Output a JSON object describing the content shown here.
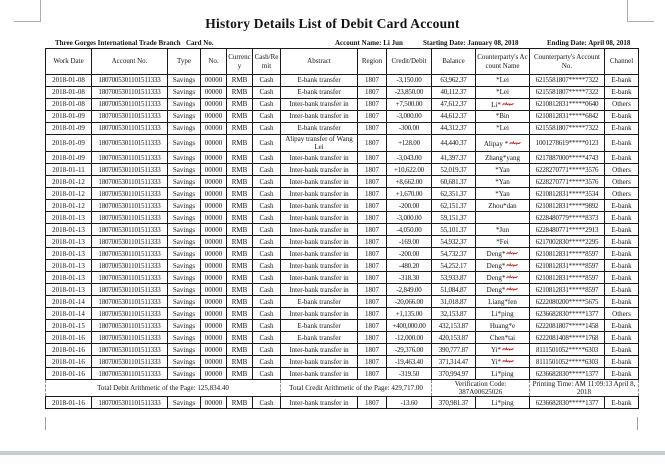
{
  "page": {
    "title": "History Details List of Debit Card Account",
    "info": {
      "branch": "Three Gorges International Trade Branch",
      "card_no_label": "Card No.",
      "account_name": "Account Name: Li Jun",
      "starting_date": "Starting Date: January 08, 2018",
      "ending_date": "Ending Date: April 08, 2018"
    },
    "colors": {
      "annotation_red": "#c42522",
      "table_border": "#1a1a1a"
    }
  },
  "table": {
    "columns": [
      "Work Date",
      "Account No.",
      "Type",
      "No.",
      "Currency",
      "Cash/Remit",
      "Abstract",
      "Region",
      "Credit/Debit",
      "Balance",
      "Counterparty's Account Name",
      "Counterparty's Account No.",
      "Channel"
    ],
    "rows": [
      {
        "work_date": "2018-01-08",
        "account_no": "1807005301101511333",
        "type": "Savings",
        "no": "00000",
        "currency": "RMB",
        "cash_remit": "Cash",
        "abstract": "E-bank transfer",
        "region": "1807",
        "credit_debit": "-3,150.00",
        "balance": "63,962.37",
        "cp_name": "*Lei",
        "cp_name_marked": false,
        "cp_account": "6215581807*****7322",
        "channel": "E-bank"
      },
      {
        "work_date": "2018-01-08",
        "account_no": "1807005301101511333",
        "type": "Savings",
        "no": "00000",
        "currency": "RMB",
        "cash_remit": "Cash",
        "abstract": "E-bank transfer",
        "region": "1807",
        "credit_debit": "-23,850.00",
        "balance": "40,112.37",
        "cp_name": "*Lei",
        "cp_name_marked": false,
        "cp_account": "6215581807*****7322",
        "channel": "E-bank"
      },
      {
        "work_date": "2018-01-08",
        "account_no": "1807005301101511333",
        "type": "Savings",
        "no": "00000",
        "currency": "RMB",
        "cash_remit": "Cash",
        "abstract": "Inter-bank transfer in",
        "region": "1807",
        "credit_debit": "+7,500.00",
        "balance": "47,612.37",
        "cp_name": "Li*",
        "cp_name_marked": true,
        "cp_account": "6210812831*****0640",
        "channel": "Others"
      },
      {
        "work_date": "2018-01-09",
        "account_no": "1807005301101511333",
        "type": "Savings",
        "no": "00000",
        "currency": "RMB",
        "cash_remit": "Cash",
        "abstract": "Inter-bank transfer in",
        "region": "1807",
        "credit_debit": "-3,000.00",
        "balance": "44,612.37",
        "cp_name": "*Bin",
        "cp_name_marked": false,
        "cp_account": "6210812831*****6842",
        "channel": "E-bank"
      },
      {
        "work_date": "2018-01-09",
        "account_no": "1807005301101511333",
        "type": "Savings",
        "no": "00000",
        "currency": "RMB",
        "cash_remit": "Cash",
        "abstract": "E-bank transfer",
        "region": "1807",
        "credit_debit": "-300.00",
        "balance": "44,312.37",
        "cp_name": "*Lei",
        "cp_name_marked": false,
        "cp_account": "6215581807*****7322",
        "channel": "E-bank"
      },
      {
        "work_date": "2018-01-09",
        "account_no": "1807005301101511333",
        "type": "Savings",
        "no": "00000",
        "currency": "RMB",
        "cash_remit": "Cash",
        "abstract": "Alipay transfer of Wang Lei",
        "region": "1807",
        "credit_debit": "+128.00",
        "balance": "44,440.37",
        "cp_name": "Alipay *",
        "cp_name_marked": true,
        "cp_account": "1001278619*****0123",
        "channel": "E-bank"
      },
      {
        "work_date": "2018-01-09",
        "account_no": "1807005301101511333",
        "type": "Savings",
        "no": "00000",
        "currency": "RMB",
        "cash_remit": "Cash",
        "abstract": "Inter-bank transfer in",
        "region": "1807",
        "credit_debit": "-3,043.00",
        "balance": "41,397.37",
        "cp_name": "Zhang*yang",
        "cp_name_marked": false,
        "cp_account": "6217887000*****4743",
        "channel": "E-bank"
      },
      {
        "work_date": "2018-01-11",
        "account_no": "1807005301101511333",
        "type": "Savings",
        "no": "00000",
        "currency": "RMB",
        "cash_remit": "Cash",
        "abstract": "Inter-bank transfer in",
        "region": "1807",
        "credit_debit": "+10,622.00",
        "balance": "52,019.37",
        "cp_name": "*Yan",
        "cp_name_marked": false,
        "cp_account": "6228270771*****3576",
        "channel": "Others"
      },
      {
        "work_date": "2018-01-12",
        "account_no": "1807005301101511333",
        "type": "Savings",
        "no": "00000",
        "currency": "RMB",
        "cash_remit": "Cash",
        "abstract": "Inter-bank transfer in",
        "region": "1807",
        "credit_debit": "+8,662.00",
        "balance": "60,681.37",
        "cp_name": "*Yan",
        "cp_name_marked": false,
        "cp_account": "6228270771*****3576",
        "channel": "Others"
      },
      {
        "work_date": "2018-01-12",
        "account_no": "1807005301101511333",
        "type": "Savings",
        "no": "00000",
        "currency": "RMB",
        "cash_remit": "Cash",
        "abstract": "Inter-bank transfer in",
        "region": "1807",
        "credit_debit": "+1,670.00",
        "balance": "62,351.37",
        "cp_name": "*Yan",
        "cp_name_marked": false,
        "cp_account": "6210812831*****3534",
        "channel": "Others"
      },
      {
        "work_date": "2018-01-12",
        "account_no": "1807005301101511333",
        "type": "Savings",
        "no": "00000",
        "currency": "RMB",
        "cash_remit": "Cash",
        "abstract": "Inter-bank transfer in",
        "region": "1807",
        "credit_debit": "-200.00",
        "balance": "62,151.37",
        "cp_name": "Zhou*dan",
        "cp_name_marked": false,
        "cp_account": "6210812831*****9892",
        "channel": "E-bank"
      },
      {
        "work_date": "2018-01-13",
        "account_no": "1807005301101511333",
        "type": "Savings",
        "no": "00000",
        "currency": "RMB",
        "cash_remit": "Cash",
        "abstract": "Inter-bank transfer in",
        "region": "1807",
        "credit_debit": "-3,000.00",
        "balance": "59,151.37",
        "cp_name": "",
        "cp_name_marked": false,
        "cp_account": "6228480779*****8373",
        "channel": "E-bank"
      },
      {
        "work_date": "2018-01-13",
        "account_no": "1807005301101511333",
        "type": "Savings",
        "no": "00000",
        "currency": "RMB",
        "cash_remit": "Cash",
        "abstract": "Inter-bank transfer in",
        "region": "1807",
        "credit_debit": "-4,050.00",
        "balance": "55,101.37",
        "cp_name": "*Jun",
        "cp_name_marked": false,
        "cp_account": "6228480771*****2913",
        "channel": "E-bank"
      },
      {
        "work_date": "2018-01-13",
        "account_no": "1807005301101511333",
        "type": "Savings",
        "no": "00000",
        "currency": "RMB",
        "cash_remit": "Cash",
        "abstract": "Inter-bank transfer in",
        "region": "1807",
        "credit_debit": "-169.00",
        "balance": "54,932.37",
        "cp_name": "*Fei",
        "cp_name_marked": false,
        "cp_account": "6217002830*****2295",
        "channel": "E-bank"
      },
      {
        "work_date": "2018-01-13",
        "account_no": "1807005301101511333",
        "type": "Savings",
        "no": "00000",
        "currency": "RMB",
        "cash_remit": "Cash",
        "abstract": "Inter-bank transfer in",
        "region": "1807",
        "credit_debit": "-200.00",
        "balance": "54,732.37",
        "cp_name": "Deng*",
        "cp_name_marked": true,
        "cp_account": "6210812831*****8597",
        "channel": "E-bank"
      },
      {
        "work_date": "2018-01-13",
        "account_no": "1807005301101511333",
        "type": "Savings",
        "no": "00000",
        "currency": "RMB",
        "cash_remit": "Cash",
        "abstract": "Inter-bank transfer in",
        "region": "1807",
        "credit_debit": "-480.20",
        "balance": "54,252.17",
        "cp_name": "Deng*",
        "cp_name_marked": true,
        "cp_account": "6210812831*****8597",
        "channel": "E-bank"
      },
      {
        "work_date": "2018-01-13",
        "account_no": "1807005301101511333",
        "type": "Savings",
        "no": "00000",
        "currency": "RMB",
        "cash_remit": "Cash",
        "abstract": "Inter-bank transfer in",
        "region": "1807",
        "credit_debit": "-318.30",
        "balance": "53,933.87",
        "cp_name": "Deng*",
        "cp_name_marked": true,
        "cp_account": "6210812831*****8597",
        "channel": "E-bank"
      },
      {
        "work_date": "2018-01-13",
        "account_no": "1807005301101511333",
        "type": "Savings",
        "no": "00000",
        "currency": "RMB",
        "cash_remit": "Cash",
        "abstract": "Inter-bank transfer in",
        "region": "1807",
        "credit_debit": "-2,849.00",
        "balance": "51,084.87",
        "cp_name": "Deng*",
        "cp_name_marked": true,
        "cp_account": "6210812831*****8597",
        "channel": "E-bank"
      },
      {
        "work_date": "2018-01-14",
        "account_no": "1807005301101511333",
        "type": "Savings",
        "no": "00000",
        "currency": "RMB",
        "cash_remit": "Cash",
        "abstract": "E-bank transfer",
        "region": "1807",
        "credit_debit": "-20,066.00",
        "balance": "31,018.87",
        "cp_name": "Liang*fen",
        "cp_name_marked": false,
        "cp_account": "6222080200*****5675",
        "channel": "E-bank"
      },
      {
        "work_date": "2018-01-14",
        "account_no": "1807005301101511333",
        "type": "Savings",
        "no": "00000",
        "currency": "RMB",
        "cash_remit": "Cash",
        "abstract": "Inter-bank transfer in",
        "region": "1807",
        "credit_debit": "+1,135.00",
        "balance": "32,153.87",
        "cp_name": "Li*ping",
        "cp_name_marked": false,
        "cp_account": "6236682830*****1377",
        "channel": "Others"
      },
      {
        "work_date": "2018-01-15",
        "account_no": "1807005301101511333",
        "type": "Savings",
        "no": "00000",
        "currency": "RMB",
        "cash_remit": "Cash",
        "abstract": "E-bank transfer",
        "region": "1807",
        "credit_debit": "+400,000.00",
        "balance": "432,153.87",
        "cp_name": "Huang*e",
        "cp_name_marked": false,
        "cp_account": "6222081807*****1458",
        "channel": "E-bank"
      },
      {
        "work_date": "2018-01-16",
        "account_no": "1807005301101511333",
        "type": "Savings",
        "no": "00000",
        "currency": "RMB",
        "cash_remit": "Cash",
        "abstract": "E-bank transfer",
        "region": "1807",
        "credit_debit": "-12,000.00",
        "balance": "420,153.87",
        "cp_name": "Chen*tai",
        "cp_name_marked": false,
        "cp_account": "6222081408*****1768",
        "channel": "E-bank"
      },
      {
        "work_date": "2018-01-16",
        "account_no": "1807005301101511333",
        "type": "Savings",
        "no": "00000",
        "currency": "RMB",
        "cash_remit": "Cash",
        "abstract": "Inter-bank transfer in",
        "region": "1807",
        "credit_debit": "-29,376.00",
        "balance": "390,777.87",
        "cp_name": "Yi*",
        "cp_name_marked": true,
        "cp_account": "8111501052*****6303",
        "channel": "E-bank"
      },
      {
        "work_date": "2018-01-16",
        "account_no": "1807005301101511333",
        "type": "Savings",
        "no": "00000",
        "currency": "RMB",
        "cash_remit": "Cash",
        "abstract": "Inter-bank transfer in",
        "region": "1807",
        "credit_debit": "-19,463.40",
        "balance": "371,314.47",
        "cp_name": "Yi*",
        "cp_name_marked": true,
        "cp_account": "8111501052*****6303",
        "channel": "E-bank"
      },
      {
        "work_date": "2018-01-16",
        "account_no": "1807005301101511333",
        "type": "Savings",
        "no": "00000",
        "currency": "RMB",
        "cash_remit": "Cash",
        "abstract": "Inter-bank transfer in",
        "region": "1807",
        "credit_debit": "-319.50",
        "balance": "370,994.97",
        "cp_name": "Li*ping",
        "cp_name_marked": false,
        "cp_account": "6236682830*****1377",
        "channel": "E-bank"
      }
    ],
    "footer": {
      "total_debit": "Total Debit Arithmetic of the Page: 125,834.40",
      "total_credit": "Total Credit Arithmetic of the Page: 429,717.00",
      "verification_code": "Verification Code: 387A00625026",
      "printing_time": "Printing Time: AM 11:09:13 April 8, 2018"
    },
    "overflow_row": {
      "work_date": "2018-01-16",
      "account_no": "1807005301101511333",
      "type": "Savings",
      "no": "00000",
      "currency": "RMB",
      "cash_remit": "Cash",
      "abstract": "Inter-bank transfer in",
      "region": "1807",
      "credit_debit": "-13.60",
      "balance": "370,981.37",
      "cp_name": "Li*ping",
      "cp_name_marked": false,
      "cp_account": "6236682830*****1377",
      "channel": "E-bank"
    }
  }
}
